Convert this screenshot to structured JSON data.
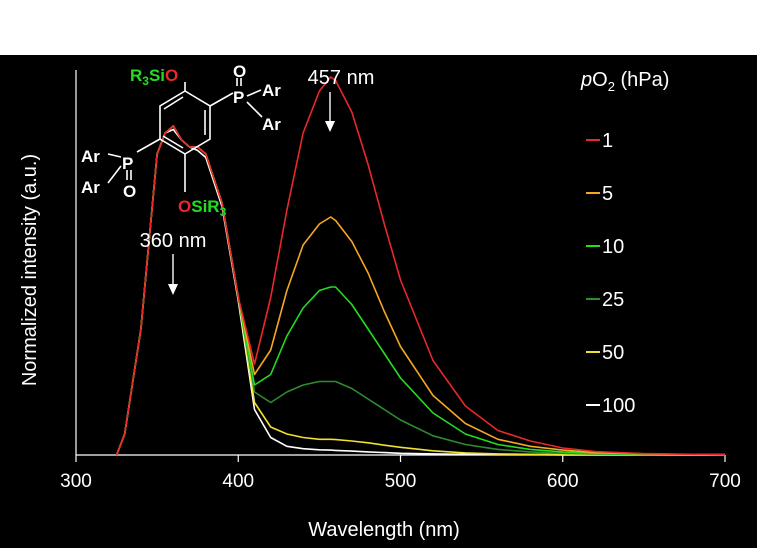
{
  "chart_data": {
    "type": "line",
    "xlabel": "Wavelength (nm)",
    "ylabel": "Normalized intensity (a.u.)",
    "xlim": [
      300,
      700
    ],
    "ylim": [
      0,
      1.1
    ],
    "x_ticks": [
      "300",
      "400",
      "500",
      "600",
      "700"
    ],
    "grid": false,
    "legend": {
      "title_italic": "p",
      "title_main": "O",
      "title_sub": "2",
      "title_unit": " (hPa)",
      "placement": "right"
    },
    "x": [
      325,
      330,
      340,
      350,
      355,
      360,
      365,
      370,
      375,
      380,
      390,
      400,
      410,
      420,
      430,
      440,
      450,
      457,
      460,
      470,
      480,
      490,
      500,
      520,
      540,
      560,
      580,
      600,
      620,
      650,
      680,
      700
    ],
    "series": [
      {
        "name": "1",
        "color": "#e8282b",
        "values": [
          0,
          0.06,
          0.36,
          0.86,
          0.92,
          0.94,
          0.9,
          0.88,
          0.88,
          0.86,
          0.72,
          0.45,
          0.26,
          0.45,
          0.7,
          0.92,
          1.04,
          1.08,
          1.07,
          0.98,
          0.83,
          0.66,
          0.5,
          0.27,
          0.14,
          0.07,
          0.04,
          0.02,
          0.01,
          0.004,
          0.002,
          0.001
        ]
      },
      {
        "name": "5",
        "color": "#f5a623",
        "values": [
          0,
          0.06,
          0.36,
          0.86,
          0.92,
          0.94,
          0.9,
          0.88,
          0.88,
          0.86,
          0.72,
          0.45,
          0.23,
          0.3,
          0.47,
          0.6,
          0.66,
          0.68,
          0.67,
          0.61,
          0.52,
          0.41,
          0.31,
          0.17,
          0.09,
          0.045,
          0.025,
          0.014,
          0.007,
          0.003,
          0.001,
          0.001
        ]
      },
      {
        "name": "10",
        "color": "#22dd22",
        "values": [
          0,
          0.06,
          0.36,
          0.86,
          0.92,
          0.94,
          0.9,
          0.88,
          0.88,
          0.86,
          0.72,
          0.45,
          0.2,
          0.23,
          0.34,
          0.42,
          0.47,
          0.48,
          0.48,
          0.43,
          0.36,
          0.29,
          0.22,
          0.12,
          0.06,
          0.03,
          0.016,
          0.009,
          0.005,
          0.002,
          0.001,
          0.001
        ]
      },
      {
        "name": "25",
        "color": "#2e8b2e",
        "values": [
          0,
          0.06,
          0.36,
          0.86,
          0.92,
          0.94,
          0.9,
          0.88,
          0.88,
          0.86,
          0.72,
          0.45,
          0.18,
          0.15,
          0.18,
          0.2,
          0.21,
          0.21,
          0.21,
          0.19,
          0.16,
          0.13,
          0.1,
          0.055,
          0.03,
          0.016,
          0.009,
          0.005,
          0.003,
          0.001,
          0.001,
          0.0
        ]
      },
      {
        "name": "50",
        "color": "#f0e030",
        "values": [
          0,
          0.06,
          0.36,
          0.86,
          0.92,
          0.94,
          0.9,
          0.88,
          0.88,
          0.86,
          0.72,
          0.45,
          0.15,
          0.08,
          0.06,
          0.05,
          0.045,
          0.045,
          0.044,
          0.04,
          0.035,
          0.028,
          0.022,
          0.012,
          0.006,
          0.003,
          0.002,
          0.001,
          0.001,
          0.0,
          0.0,
          0.0
        ]
      },
      {
        "name": "100",
        "color": "#ffffff",
        "values": [
          0,
          0.06,
          0.36,
          0.86,
          0.92,
          0.93,
          0.9,
          0.88,
          0.87,
          0.85,
          0.71,
          0.44,
          0.13,
          0.05,
          0.025,
          0.018,
          0.015,
          0.014,
          0.013,
          0.011,
          0.009,
          0.007,
          0.005,
          0.003,
          0.002,
          0.001,
          0.001,
          0.0,
          0.0,
          0.0,
          0.0,
          0.0
        ]
      }
    ],
    "annotations": [
      {
        "text": "457 nm",
        "x": 457
      },
      {
        "text": "360 nm",
        "x": 360
      }
    ]
  },
  "structure": {
    "top_group": "R",
    "top_group_sub": "3",
    "top_group_si": "Si",
    "top_group_o": "O",
    "bottom_group_o": "O",
    "bottom_group_si": "SiR",
    "bottom_group_sub": "3",
    "ar_1": "Ar",
    "ar_2": "Ar",
    "ar_3": "Ar",
    "ar_4": "Ar",
    "p_1": "P",
    "p_2": "P",
    "o_1": "O",
    "o_2": "O",
    "green": "#22dd22",
    "red": "#e8282b"
  }
}
